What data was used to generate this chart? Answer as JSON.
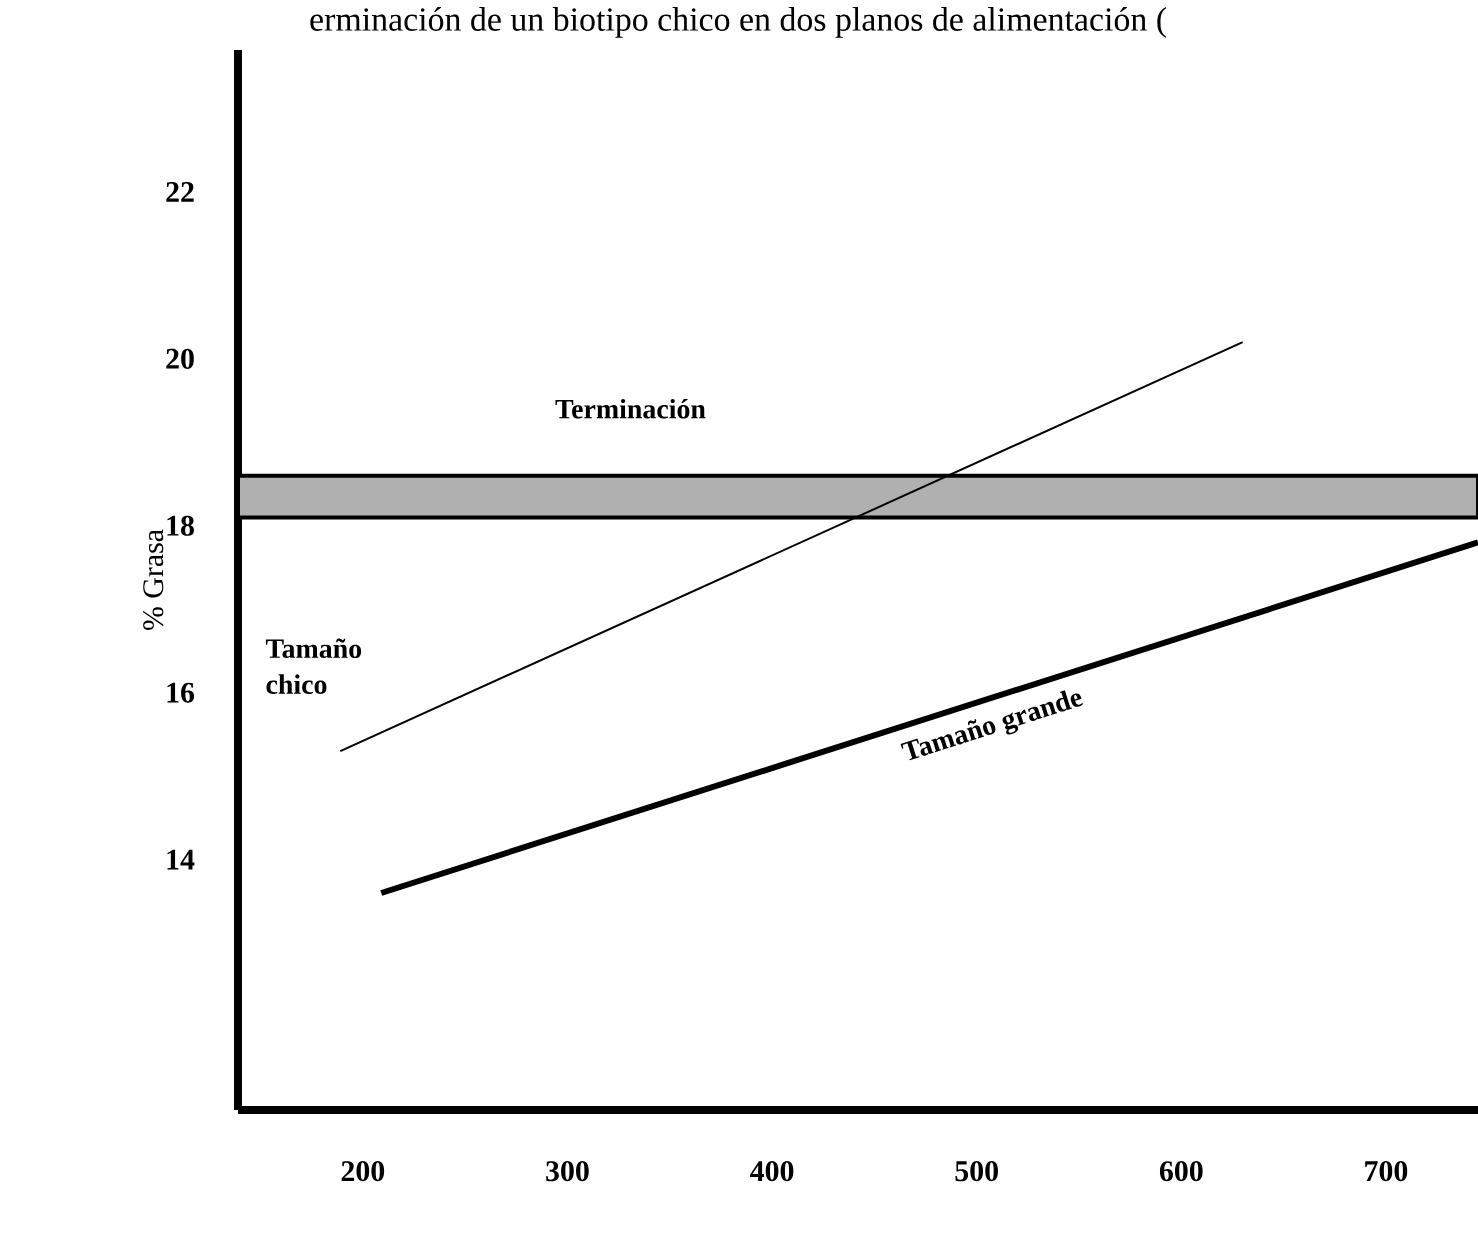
{
  "chart_data": {
    "type": "line",
    "title": "erminación de un biotipo chico en dos planos de alimentación (",
    "ylabel": "% Grasa",
    "xlim": [
      139,
      745
    ],
    "ylim": [
      11,
      23.7
    ],
    "xticks": [
      200,
      300,
      400,
      500,
      600,
      700
    ],
    "yticks": [
      14,
      16,
      18,
      20,
      22
    ],
    "series": [
      {
        "name": "Tamaño chico",
        "color": "#000000",
        "x": [
          189,
          630
        ],
        "values": [
          15.3,
          20.2
        ]
      },
      {
        "name": "Tamaño grande",
        "color": "#000000",
        "x": [
          209,
          745
        ],
        "values": [
          13.6,
          17.8
        ]
      }
    ],
    "bands": [
      {
        "axis": "y",
        "from": 18.1,
        "to": 18.6,
        "label": "Terminación",
        "color": "#b0b0b0"
      }
    ],
    "grid": false,
    "marker": "none",
    "line_style": "solid"
  }
}
